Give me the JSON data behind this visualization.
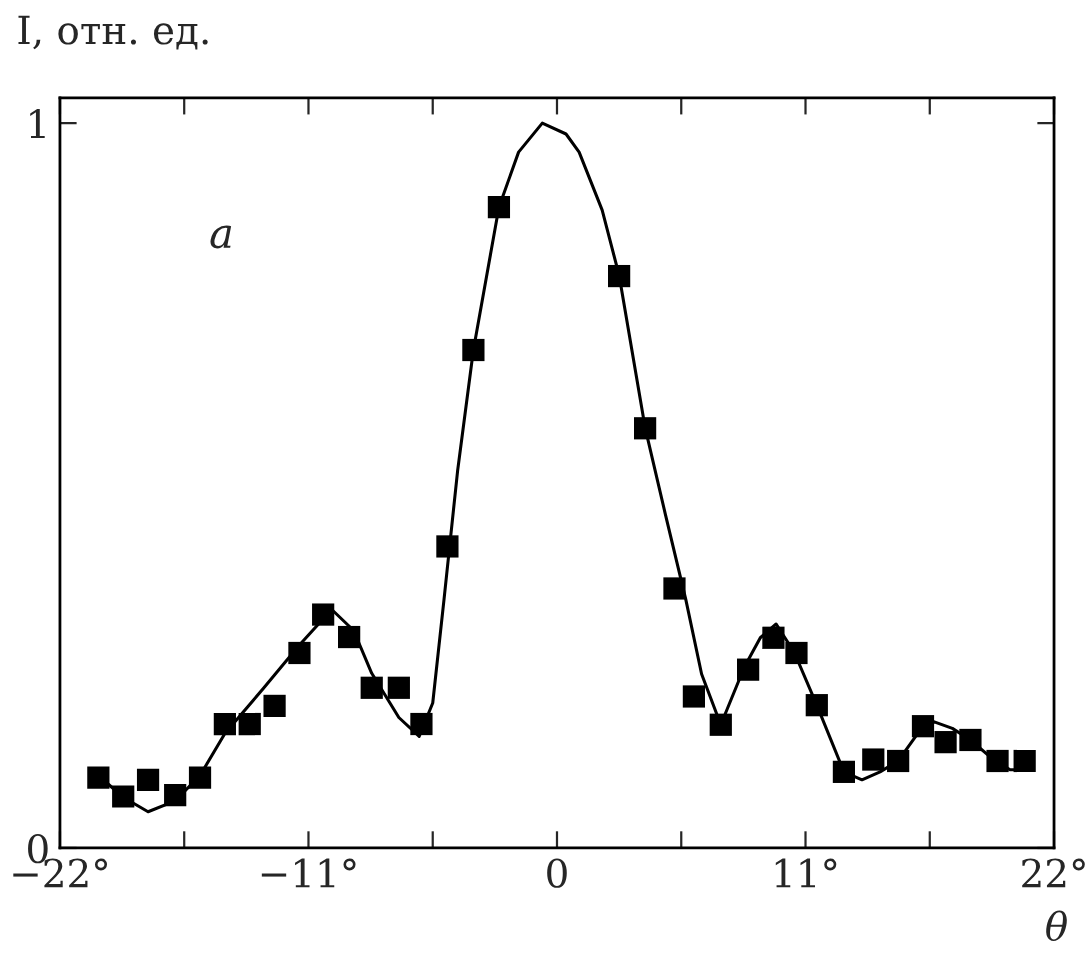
{
  "chart_data": {
    "type": "scatter",
    "ylabel": "I, отн. ед.",
    "xlabel": "θ",
    "annotations": [
      "a"
    ],
    "xlim": [
      -22,
      22
    ],
    "ylim": [
      0,
      1.035
    ],
    "xticks": [
      {
        "value": -22,
        "label": "−22°"
      },
      {
        "value": -16.5,
        "label": null
      },
      {
        "value": -11,
        "label": "−11°"
      },
      {
        "value": -5.5,
        "label": null
      },
      0,
      {
        "value": 5.5,
        "label": null
      },
      {
        "value": 11,
        "label": "11°"
      },
      {
        "value": 16.5,
        "label": null
      },
      {
        "value": 22,
        "label": "22°"
      }
    ],
    "yticks": [
      0,
      1
    ],
    "grid": false,
    "series": [
      {
        "marker": "square",
        "color": "#000000",
        "x": [
          -20.3,
          -19.2,
          -18.1,
          -16.9,
          -15.8,
          -14.7,
          -13.6,
          -12.5,
          -11.4,
          -10.35,
          -9.2,
          -8.2,
          -7.0,
          -6.0,
          -4.85,
          -3.7,
          -2.57,
          2.75,
          3.9,
          5.2,
          6.06,
          7.25,
          8.46,
          9.58,
          10.6,
          11.5,
          12.7,
          14.0,
          15.1,
          16.2,
          17.2,
          18.3,
          19.5,
          20.7
        ],
        "values": [
          0.097,
          0.071,
          0.094,
          0.073,
          0.097,
          0.171,
          0.171,
          0.196,
          0.269,
          0.322,
          0.291,
          0.221,
          0.221,
          0.171,
          0.416,
          0.687,
          0.884,
          0.789,
          0.579,
          0.358,
          0.209,
          0.17,
          0.246,
          0.29,
          0.269,
          0.197,
          0.105,
          0.122,
          0.12,
          0.168,
          0.146,
          0.149,
          0.12,
          0.12
        ]
      },
      {
        "type": "line",
        "marker": "none",
        "line_style": "solid",
        "color": "#000000",
        "x": [
          -20.3,
          -19.2,
          -18.1,
          -16.9,
          -15.8,
          -14.7,
          -13.0,
          -11.4,
          -9.97,
          -9.0,
          -8.2,
          -7.0,
          -6.1,
          -5.5,
          -5.0,
          -4.4,
          -3.7,
          -2.57,
          -1.7,
          -0.65,
          0.4,
          0.98,
          2.0,
          2.75,
          3.9,
          4.8,
          5.7,
          6.4,
          7.25,
          8.3,
          9.0,
          9.7,
          10.5,
          11.5,
          12.7,
          13.5,
          14.3,
          15.1,
          15.9,
          16.7,
          17.5,
          18.3,
          19.2,
          20.05,
          20.9
        ],
        "values": [
          0.1,
          0.07,
          0.05,
          0.065,
          0.1,
          0.158,
          0.22,
          0.28,
          0.329,
          0.3,
          0.241,
          0.18,
          0.154,
          0.2,
          0.343,
          0.52,
          0.687,
          0.884,
          0.96,
          1.0,
          0.985,
          0.96,
          0.88,
          0.79,
          0.58,
          0.46,
          0.343,
          0.24,
          0.17,
          0.25,
          0.29,
          0.309,
          0.27,
          0.197,
          0.105,
          0.094,
          0.105,
          0.12,
          0.155,
          0.174,
          0.165,
          0.149,
          0.125,
          0.108,
          0.108
        ]
      }
    ]
  }
}
